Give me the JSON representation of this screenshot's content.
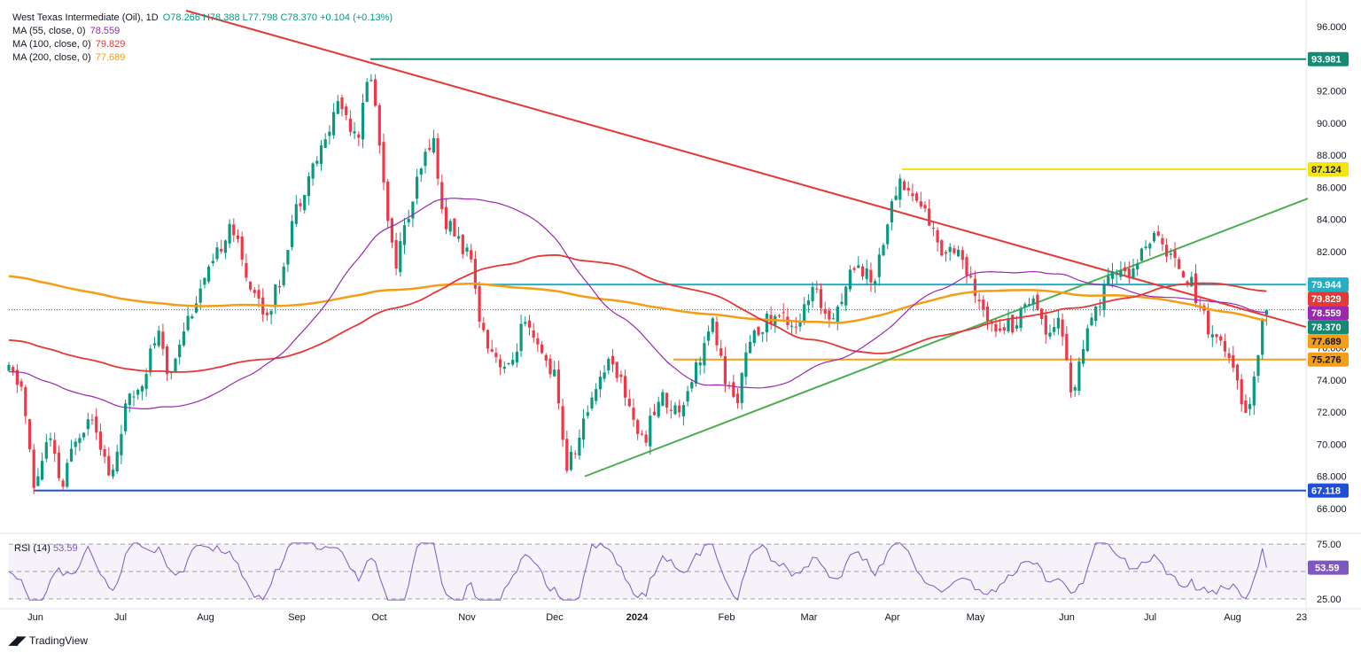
{
  "chart_data": {
    "type": "candlestick",
    "symbol_line": {
      "name": "West Texas Intermediate (Oil), 1D",
      "ohlc": "O78.266  H78.388  L77.798  C78.370  +0.104 (+0.13%)"
    },
    "indicators": [
      {
        "label": "MA (55, close, 0)",
        "value": "78.559",
        "color": "#9c27b0"
      },
      {
        "label": "MA (100, close, 0)",
        "value": "79.829",
        "color": "#e53935"
      },
      {
        "label": "MA (200, close, 0)",
        "value": "77.689",
        "color": "#f59d14"
      }
    ],
    "price_axis": {
      "range": [
        65,
        97
      ],
      "ticks": [
        "96.000",
        "94.000",
        "92.000",
        "90.000",
        "88.000",
        "86.000",
        "84.000",
        "82.000",
        "80.000",
        "78.000",
        "76.000",
        "74.000",
        "72.000",
        "70.000",
        "68.000",
        "66.000"
      ]
    },
    "time_axis": {
      "labels": [
        "Jun",
        "Jul",
        "Aug",
        "Sep",
        "Oct",
        "Nov",
        "Dec",
        "2024",
        "Feb",
        "Mar",
        "Apr",
        "May",
        "Jun",
        "Jul",
        "Aug",
        "23"
      ]
    },
    "price_badges": [
      {
        "value": "93.981",
        "color": "#138a74"
      },
      {
        "value": "87.124",
        "color": "#f5e60a",
        "text_color": "#131722"
      },
      {
        "value": "79.944",
        "color": "#22b0c4"
      },
      {
        "value": "79.829",
        "color": "#e53935"
      },
      {
        "value": "78.559",
        "color": "#9c27b0"
      },
      {
        "value": "78.370",
        "color": "#138a74"
      },
      {
        "value": "77.689",
        "color": "#f59d14",
        "text_color": "#131722"
      },
      {
        "value": "75.276",
        "color": "#f59d14",
        "text_color": "#131722"
      },
      {
        "value": "67.118",
        "color": "#1e4fd8"
      }
    ],
    "horizontal_levels": [
      {
        "value": 93.981,
        "color": "#138a74"
      },
      {
        "value": 87.124,
        "color": "#f5e60a"
      },
      {
        "value": 79.944,
        "color": "#22b0c4"
      },
      {
        "value": 75.276,
        "color": "#f59d14"
      },
      {
        "value": 67.118,
        "color": "#1e4fd8"
      }
    ],
    "last_close": 78.37,
    "trendlines": [
      {
        "name": "descending",
        "color": "#e53935"
      },
      {
        "name": "ascending",
        "color": "#4caf50"
      }
    ],
    "rsi": {
      "label": "RSI (14)",
      "value": "53.59",
      "color": "#7e57c2",
      "range": [
        20,
        80
      ],
      "ticks": [
        "75.00",
        "25.00"
      ]
    }
  },
  "branding": {
    "name": "TradingView"
  }
}
